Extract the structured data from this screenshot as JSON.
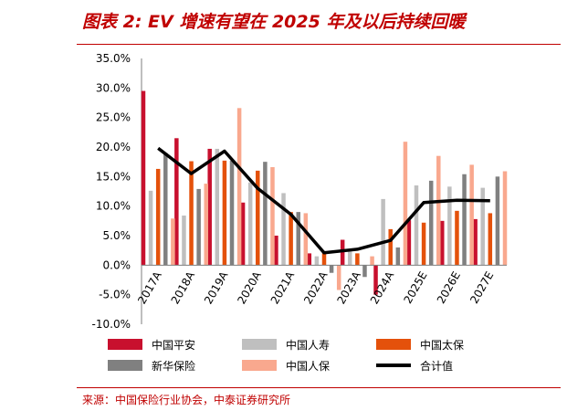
{
  "title": "图表 2:    EV 增速有望在 2025 年及以后持续回暖",
  "source": "来源：中国保险行业协会，中泰证券研究所",
  "chart_data": {
    "type": "bar",
    "categories": [
      "2017A",
      "2018A",
      "2019A",
      "2020A",
      "2021A",
      "2022A",
      "2023A",
      "2024A",
      "2025E",
      "2026E",
      "2027E"
    ],
    "ylim": [
      -0.1,
      0.35
    ],
    "ytick_labels": [
      "35.0%",
      "30.0%",
      "25.0%",
      "20.0%",
      "15.0%",
      "10.0%",
      "5.0%",
      "0.0%",
      "-5.0%",
      "-10.0%"
    ],
    "ytick_values": [
      0.35,
      0.3,
      0.25,
      0.2,
      0.15,
      0.1,
      0.05,
      0.0,
      -0.05,
      -0.1
    ],
    "series": [
      {
        "name": "中国平安",
        "color": "#c8102e",
        "values": [
          0.295,
          0.215,
          0.197,
          0.106,
          0.05,
          0.02,
          0.043,
          -0.05,
          0.076,
          0.075,
          0.078
        ]
      },
      {
        "name": "中国人寿",
        "color": "#bfbfbf",
        "values": [
          0.126,
          0.084,
          0.197,
          0.14,
          0.122,
          0.015,
          0.023,
          0.112,
          0.135,
          0.133,
          0.131
        ]
      },
      {
        "name": "中国太保",
        "color": "#e4510b",
        "values": [
          0.163,
          0.176,
          0.177,
          0.16,
          0.09,
          0.02,
          0.02,
          0.061,
          0.072,
          0.092,
          0.088
        ]
      },
      {
        "name": "新华保险",
        "color": "#808080",
        "values": [
          0.19,
          0.129,
          0.177,
          0.175,
          0.09,
          -0.013,
          -0.02,
          0.03,
          0.143,
          0.154,
          0.15
        ]
      },
      {
        "name": "中国人保",
        "color": "#f9a88e",
        "values": [
          0.079,
          0.138,
          0.266,
          0.166,
          0.088,
          -0.042,
          0.015,
          0.209,
          0.185,
          0.17,
          0.159
        ]
      }
    ],
    "line_series": {
      "name": "合计值",
      "color": "#000000",
      "values": [
        0.198,
        0.155,
        0.193,
        0.13,
        0.086,
        0.021,
        0.027,
        0.042,
        0.106,
        0.11,
        0.109
      ]
    }
  }
}
